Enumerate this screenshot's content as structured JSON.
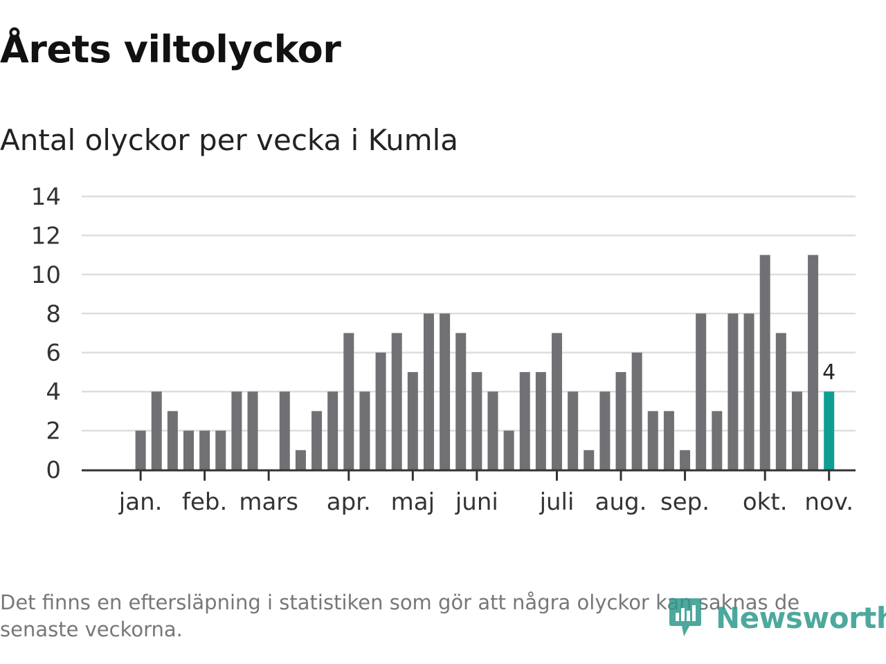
{
  "header": {
    "title": "Årets viltolyckor",
    "subtitle": "Antal olyckor per vecka i Kumla"
  },
  "footer": {
    "note": "Det finns en eftersläpning i statistiken som gör att några olyckor kan saknas de senaste veckorna.",
    "brand": "Newsworthy"
  },
  "colors": {
    "bar": "#707075",
    "highlight": "#0e9f92",
    "grid": "#dddddd",
    "axis": "#333333",
    "brand": "#2f9a8c"
  },
  "chart_data": {
    "type": "bar",
    "xlabel": "",
    "ylabel": "",
    "ylim": [
      0,
      14
    ],
    "yticks": [
      0,
      2,
      4,
      6,
      8,
      10,
      12,
      14
    ],
    "grid": true,
    "weeks": [
      1,
      2,
      3,
      4,
      5,
      6,
      7,
      8,
      9,
      10,
      11,
      12,
      13,
      14,
      15,
      16,
      17,
      18,
      19,
      20,
      21,
      22,
      23,
      24,
      25,
      26,
      27,
      28,
      29,
      30,
      31,
      32,
      33,
      34,
      35,
      36,
      37,
      38,
      39,
      40,
      41,
      42,
      43,
      44,
      45
    ],
    "values": [
      0,
      2,
      4,
      3,
      2,
      2,
      2,
      4,
      4,
      0,
      4,
      1,
      3,
      4,
      7,
      4,
      6,
      7,
      5,
      8,
      8,
      7,
      5,
      4,
      2,
      5,
      5,
      7,
      4,
      1,
      4,
      5,
      6,
      3,
      3,
      1,
      8,
      3,
      8,
      8,
      11,
      7,
      4,
      11,
      4
    ],
    "highlight_index": 44,
    "highlight_label": "4",
    "month_labels": [
      {
        "label": "jan.",
        "week": 1
      },
      {
        "label": "feb.",
        "week": 5
      },
      {
        "label": "mars",
        "week": 9
      },
      {
        "label": "apr.",
        "week": 14
      },
      {
        "label": "maj",
        "week": 18
      },
      {
        "label": "juni",
        "week": 22
      },
      {
        "label": "juli",
        "week": 27
      },
      {
        "label": "aug.",
        "week": 31
      },
      {
        "label": "sep.",
        "week": 35
      },
      {
        "label": "okt.",
        "week": 40
      },
      {
        "label": "nov.",
        "week": 44
      }
    ]
  }
}
